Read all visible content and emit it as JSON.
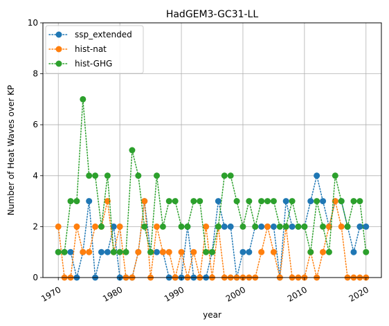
{
  "chart_data": {
    "type": "line",
    "title": "HadGEM3-GC31-LL",
    "xlabel": "year",
    "ylabel": "Number of Heat Waves over KP",
    "xlim": [
      1967.5,
      2022.5
    ],
    "ylim": [
      0,
      10
    ],
    "x_ticks": [
      1970,
      1980,
      1990,
      2000,
      2010,
      2020
    ],
    "y_ticks": [
      0,
      2,
      4,
      6,
      8,
      10
    ],
    "grid": true,
    "legend_position": "upper-left",
    "x": [
      1970,
      1971,
      1972,
      1973,
      1974,
      1975,
      1976,
      1977,
      1978,
      1979,
      1980,
      1981,
      1982,
      1983,
      1984,
      1985,
      1986,
      1987,
      1988,
      1989,
      1990,
      1991,
      1992,
      1993,
      1994,
      1995,
      1996,
      1997,
      1998,
      1999,
      2000,
      2001,
      2002,
      2003,
      2004,
      2005,
      2006,
      2007,
      2008,
      2009,
      2010,
      2011,
      2012,
      2013,
      2014,
      2015,
      2016,
      2017,
      2018,
      2019,
      2020
    ],
    "series": [
      {
        "name": "ssp_extended",
        "color": "#1f77b4",
        "values": [
          1,
          1,
          1,
          0,
          1,
          3,
          0,
          1,
          1,
          2,
          0,
          0,
          0,
          1,
          3,
          1,
          1,
          1,
          0,
          0,
          0,
          2,
          0,
          0,
          0,
          1,
          3,
          2,
          2,
          0,
          1,
          1,
          2,
          2,
          2,
          2,
          0,
          3,
          2,
          2,
          2,
          3,
          4,
          3,
          2,
          3,
          3,
          2,
          1,
          2,
          2
        ]
      },
      {
        "name": "hist-nat",
        "color": "#ff7f0e",
        "values": [
          2,
          0,
          0,
          2,
          1,
          1,
          2,
          2,
          3,
          1,
          2,
          0,
          0,
          1,
          3,
          0,
          2,
          1,
          1,
          0,
          1,
          0,
          1,
          0,
          2,
          0,
          2,
          0,
          0,
          0,
          0,
          0,
          0,
          1,
          2,
          1,
          0,
          2,
          0,
          0,
          0,
          1,
          0,
          1,
          2,
          3,
          2,
          0,
          0,
          0,
          0
        ]
      },
      {
        "name": "hist-GHG",
        "color": "#2ca02c",
        "values": [
          1,
          1,
          3,
          3,
          7,
          4,
          4,
          2,
          4,
          1,
          1,
          1,
          5,
          4,
          2,
          1,
          4,
          2,
          3,
          3,
          2,
          2,
          3,
          3,
          1,
          1,
          2,
          4,
          4,
          3,
          2,
          3,
          2,
          3,
          3,
          3,
          2,
          2,
          3,
          2,
          2,
          1,
          3,
          2,
          1,
          4,
          3,
          2,
          3,
          3,
          1
        ]
      }
    ]
  }
}
